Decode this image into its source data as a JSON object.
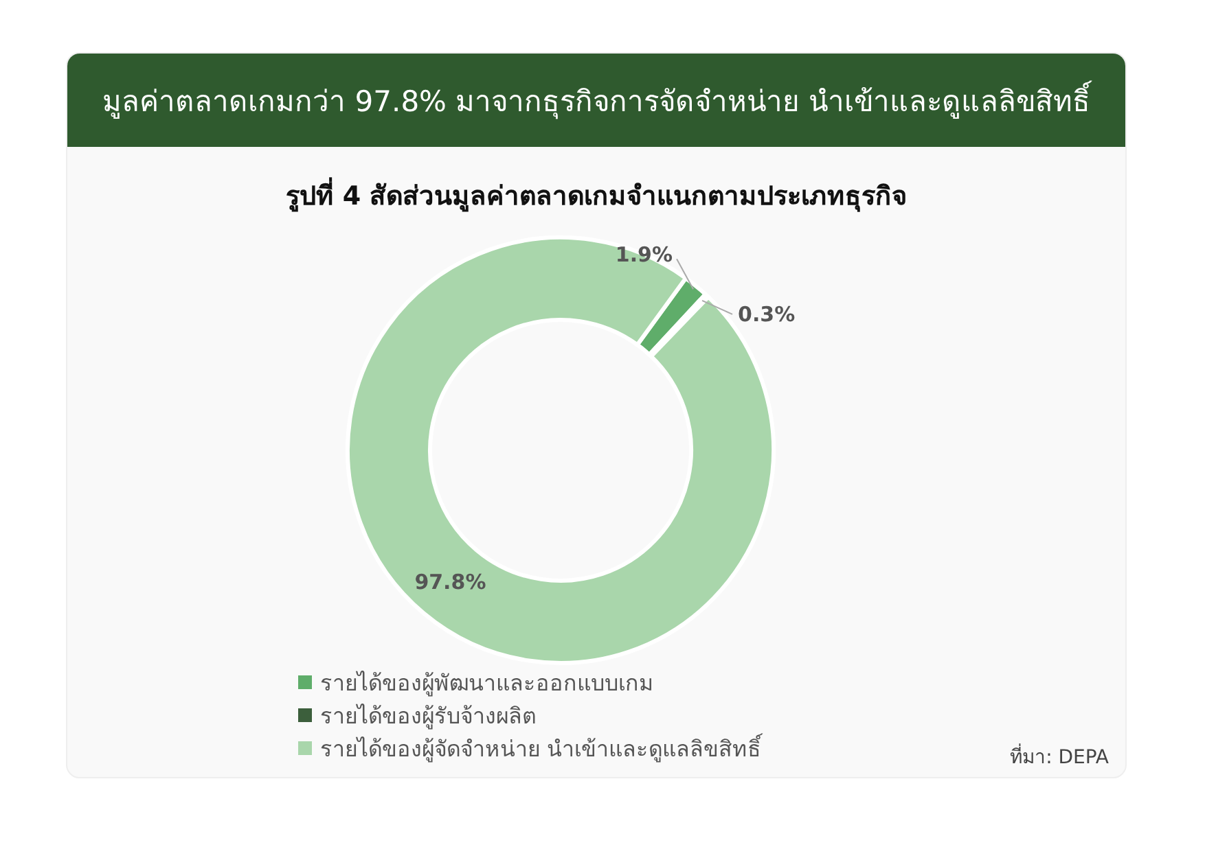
{
  "chart_data": {
    "type": "donut",
    "title": "มูลค่าตลาดเกมกว่า 97.8% มาจากธุรกิจการจัดจำหน่าย นำเข้าและดูแลลิขสิทธิ์",
    "subtitle": "รูปที่ 4 สัดส่วนมูลค่าตลาดเกมจำแนกตามประเภทธุรกิจ",
    "categories": [
      "รายได้ของผู้พัฒนาและออกแบบเกม",
      "รายได้ของผู้รับจ้างผลิต",
      "รายได้ของผู้จัดจำหน่าย นำเข้าและดูแลลิขสิทธิ์"
    ],
    "values": [
      1.9,
      0.3,
      97.8
    ],
    "value_labels": [
      "1.9%",
      "0.3%",
      "97.8%"
    ],
    "colors": [
      "#5fad6a",
      "#3c5f3c",
      "#a9d6ab"
    ],
    "legend": "bottom left",
    "annotations": [
      "ที่มา: DEPA"
    ]
  }
}
